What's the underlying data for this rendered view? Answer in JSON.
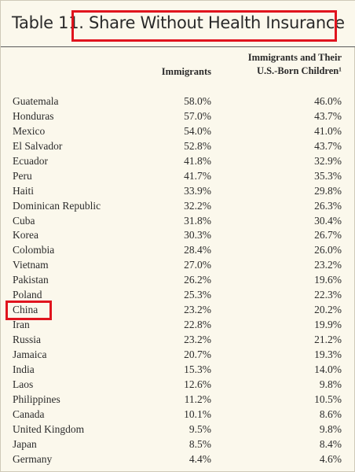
{
  "table": {
    "title": "Table 11. Share Without Health Insurance",
    "col_immigrants": "Immigrants",
    "col_children_line1": "Immigrants and Their",
    "col_children_line2": "U.S.-Born Children¹",
    "highlight_color": "#e0141e",
    "rows": [
      {
        "country": "Guatemala",
        "immigrants": "58.0%",
        "children": "46.0%"
      },
      {
        "country": "Honduras",
        "immigrants": "57.0%",
        "children": "43.7%"
      },
      {
        "country": "Mexico",
        "immigrants": "54.0%",
        "children": "41.0%"
      },
      {
        "country": "El Salvador",
        "immigrants": "52.8%",
        "children": "43.7%"
      },
      {
        "country": "Ecuador",
        "immigrants": "41.8%",
        "children": "32.9%"
      },
      {
        "country": "Peru",
        "immigrants": "41.7%",
        "children": "35.3%"
      },
      {
        "country": "Haiti",
        "immigrants": "33.9%",
        "children": "29.8%"
      },
      {
        "country": "Dominican Republic",
        "immigrants": "32.2%",
        "children": "26.3%"
      },
      {
        "country": "Cuba",
        "immigrants": "31.8%",
        "children": "30.4%"
      },
      {
        "country": "Korea",
        "immigrants": "30.3%",
        "children": "26.7%"
      },
      {
        "country": "Colombia",
        "immigrants": "28.4%",
        "children": "26.0%"
      },
      {
        "country": "Vietnam",
        "immigrants": "27.0%",
        "children": "23.2%"
      },
      {
        "country": "Pakistan",
        "immigrants": "26.2%",
        "children": "19.6%"
      },
      {
        "country": "Poland",
        "immigrants": "25.3%",
        "children": "22.3%"
      },
      {
        "country": "China",
        "immigrants": "23.2%",
        "children": "20.2%"
      },
      {
        "country": "Iran",
        "immigrants": "22.8%",
        "children": "19.9%"
      },
      {
        "country": "Russia",
        "immigrants": "23.2%",
        "children": "21.2%"
      },
      {
        "country": "Jamaica",
        "immigrants": "20.7%",
        "children": "19.3%"
      },
      {
        "country": "India",
        "immigrants": "15.3%",
        "children": "14.0%"
      },
      {
        "country": "Laos",
        "immigrants": "12.6%",
        "children": "9.8%"
      },
      {
        "country": "Philippines",
        "immigrants": "11.2%",
        "children": "10.5%"
      },
      {
        "country": "Canada",
        "immigrants": "10.1%",
        "children": "8.6%"
      },
      {
        "country": "United Kingdom",
        "immigrants": "9.5%",
        "children": "9.8%"
      },
      {
        "country": "Japan",
        "immigrants": "8.5%",
        "children": "8.4%"
      },
      {
        "country": "Germany",
        "immigrants": "4.4%",
        "children": "4.6%"
      }
    ]
  }
}
